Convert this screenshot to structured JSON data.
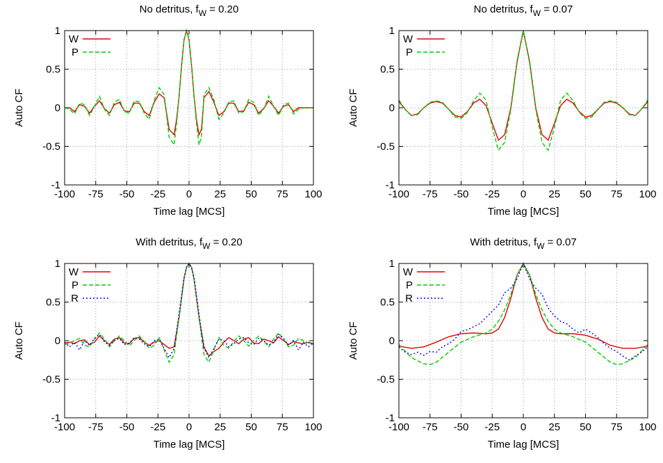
{
  "chart_data": [
    {
      "type": "line",
      "title": "No detritus,",
      "title_sub": "f",
      "title_subscript": "W",
      "title_value": " = 0.20",
      "xlabel": "Time lag [MCS]",
      "ylabel": "Auto CF",
      "xlim": [
        -100,
        100
      ],
      "ylim": [
        -1,
        1
      ],
      "xticks": [
        "-100",
        "-75",
        "-50",
        "-25",
        "0",
        "25",
        "50",
        "75",
        "100"
      ],
      "yticks": [
        "-1",
        "-0.5",
        "0",
        "0.5",
        "1"
      ],
      "grid": true,
      "legend_position": "top-left",
      "series": [
        {
          "name": "W",
          "color": "#e00000",
          "dash": "solid",
          "x": [
            -100,
            -96,
            -92,
            -88,
            -84,
            -80,
            -76,
            -72,
            -68,
            -64,
            -60,
            -56,
            -52,
            -48,
            -44,
            -40,
            -36,
            -32,
            -28,
            -24,
            -20,
            -16,
            -12,
            -10,
            -8,
            -6,
            -4,
            -2,
            0,
            2,
            4,
            6,
            8,
            10,
            12,
            16,
            20,
            24,
            28,
            32,
            36,
            40,
            44,
            48,
            52,
            56,
            60,
            64,
            68,
            72,
            76,
            80,
            84,
            88,
            92,
            96,
            100
          ],
          "values": [
            0.0,
            0.0,
            -0.05,
            0.04,
            0.02,
            -0.07,
            0.02,
            0.09,
            -0.01,
            -0.07,
            0.04,
            0.07,
            -0.04,
            -0.05,
            0.06,
            0.06,
            -0.05,
            -0.1,
            0.07,
            0.18,
            0.13,
            -0.28,
            -0.35,
            -0.15,
            0.15,
            0.55,
            0.88,
            1.0,
            0.88,
            0.55,
            0.15,
            -0.15,
            -0.35,
            -0.28,
            0.13,
            0.21,
            0.07,
            -0.1,
            -0.05,
            0.06,
            0.06,
            -0.05,
            -0.04,
            0.07,
            0.04,
            -0.07,
            -0.01,
            0.09,
            0.02,
            -0.07,
            0.02,
            0.04,
            -0.05,
            0.0,
            0.0,
            0.0,
            0.0
          ]
        },
        {
          "name": "P",
          "color": "#00cc00",
          "dash": "dashed",
          "x": [
            -100,
            -96,
            -92,
            -88,
            -84,
            -80,
            -76,
            -72,
            -68,
            -64,
            -60,
            -56,
            -52,
            -48,
            -44,
            -40,
            -36,
            -32,
            -28,
            -24,
            -20,
            -16,
            -12,
            -10,
            -8,
            -6,
            -4,
            -2,
            0,
            2,
            4,
            6,
            8,
            10,
            12,
            16,
            20,
            24,
            28,
            32,
            36,
            40,
            44,
            48,
            52,
            56,
            60,
            64,
            68,
            72,
            76,
            80,
            84,
            88,
            92,
            96,
            100
          ],
          "values": [
            0.0,
            -0.02,
            -0.08,
            0.06,
            0.04,
            -0.1,
            0.02,
            0.15,
            -0.02,
            -0.1,
            0.07,
            0.11,
            -0.05,
            -0.07,
            0.09,
            0.08,
            -0.07,
            -0.15,
            0.1,
            0.26,
            0.17,
            -0.38,
            -0.48,
            -0.2,
            0.15,
            0.55,
            0.88,
            1.0,
            0.88,
            0.55,
            0.15,
            -0.2,
            -0.48,
            -0.38,
            0.17,
            0.26,
            0.1,
            -0.15,
            -0.07,
            0.08,
            0.09,
            -0.07,
            -0.05,
            0.11,
            0.07,
            -0.1,
            -0.02,
            0.15,
            0.02,
            -0.1,
            0.04,
            0.06,
            -0.08,
            -0.02,
            0.0,
            0.0,
            0.0
          ]
        }
      ]
    },
    {
      "type": "line",
      "title": "No detritus,",
      "title_sub": "f",
      "title_subscript": "W",
      "title_value": " = 0.07",
      "xlabel": "Time lag [MCS]",
      "ylabel": "Auto CF",
      "xlim": [
        -100,
        100
      ],
      "ylim": [
        -1,
        1
      ],
      "xticks": [
        "-100",
        "-75",
        "-50",
        "-25",
        "0",
        "25",
        "50",
        "75",
        "100"
      ],
      "yticks": [
        "-1",
        "-0.5",
        "0",
        "0.5",
        "1"
      ],
      "grid": true,
      "legend_position": "top-left",
      "series": [
        {
          "name": "W",
          "color": "#e00000",
          "dash": "solid",
          "x": [
            -100,
            -95,
            -90,
            -85,
            -80,
            -75,
            -70,
            -65,
            -60,
            -55,
            -50,
            -45,
            -40,
            -35,
            -30,
            -25,
            -20,
            -15,
            -10,
            -5,
            0,
            5,
            10,
            15,
            20,
            25,
            30,
            35,
            40,
            45,
            50,
            55,
            60,
            65,
            70,
            75,
            80,
            85,
            90,
            95,
            100
          ],
          "values": [
            0.08,
            -0.02,
            -0.1,
            -0.08,
            0.0,
            0.06,
            0.08,
            0.06,
            -0.02,
            -0.1,
            -0.12,
            -0.05,
            0.06,
            0.11,
            0.03,
            -0.2,
            -0.42,
            -0.35,
            0.0,
            0.6,
            1.0,
            0.6,
            0.0,
            -0.35,
            -0.42,
            -0.2,
            0.03,
            0.11,
            0.06,
            -0.05,
            -0.12,
            -0.1,
            -0.02,
            0.06,
            0.08,
            0.06,
            0.0,
            -0.08,
            -0.1,
            -0.02,
            0.08
          ]
        },
        {
          "name": "P",
          "color": "#00cc00",
          "dash": "dashed",
          "x": [
            -100,
            -95,
            -90,
            -85,
            -80,
            -75,
            -70,
            -65,
            -60,
            -55,
            -50,
            -45,
            -40,
            -35,
            -30,
            -25,
            -20,
            -15,
            -10,
            -5,
            0,
            5,
            10,
            15,
            20,
            25,
            30,
            35,
            40,
            45,
            50,
            55,
            60,
            65,
            70,
            75,
            80,
            85,
            90,
            95,
            100
          ],
          "values": [
            0.1,
            -0.02,
            -0.1,
            -0.09,
            0.0,
            0.07,
            0.09,
            0.07,
            -0.02,
            -0.12,
            -0.14,
            -0.06,
            0.09,
            0.19,
            0.1,
            -0.25,
            -0.55,
            -0.45,
            -0.02,
            0.58,
            1.0,
            0.58,
            -0.02,
            -0.45,
            -0.55,
            -0.25,
            0.1,
            0.19,
            0.09,
            -0.06,
            -0.14,
            -0.12,
            -0.02,
            0.07,
            0.09,
            0.07,
            0.0,
            -0.09,
            -0.1,
            -0.02,
            0.1
          ]
        }
      ]
    },
    {
      "type": "line",
      "title": "With detritus,",
      "title_sub": "f",
      "title_subscript": "W",
      "title_value": " = 0.20",
      "xlabel": "Time lag [MCS]",
      "ylabel": "Auto CF",
      "xlim": [
        -100,
        100
      ],
      "ylim": [
        -1,
        1
      ],
      "xticks": [
        "-100",
        "-75",
        "-50",
        "-25",
        "0",
        "25",
        "50",
        "75",
        "100"
      ],
      "yticks": [
        "-1",
        "-0.5",
        "0",
        "0.5",
        "1"
      ],
      "grid": true,
      "legend_position": "top-left",
      "series": [
        {
          "name": "W",
          "color": "#e00000",
          "dash": "solid",
          "x": [
            -100,
            -96,
            -92,
            -88,
            -84,
            -80,
            -76,
            -72,
            -68,
            -64,
            -60,
            -56,
            -52,
            -48,
            -44,
            -40,
            -36,
            -32,
            -28,
            -24,
            -20,
            -16,
            -12,
            -8,
            -4,
            -2,
            0,
            2,
            4,
            8,
            12,
            16,
            20,
            24,
            28,
            32,
            36,
            40,
            44,
            48,
            52,
            56,
            60,
            64,
            68,
            72,
            76,
            80,
            84,
            88,
            92,
            96,
            100
          ],
          "values": [
            -0.03,
            -0.02,
            -0.04,
            0.0,
            0.01,
            -0.05,
            -0.02,
            0.06,
            0.0,
            -0.05,
            0.02,
            0.04,
            -0.03,
            -0.04,
            0.03,
            0.04,
            -0.02,
            -0.06,
            -0.02,
            0.0,
            -0.05,
            -0.1,
            -0.08,
            0.3,
            0.8,
            0.95,
            1.0,
            0.95,
            0.8,
            0.3,
            -0.08,
            -0.2,
            -0.14,
            -0.1,
            -0.02,
            0.04,
            0.0,
            -0.04,
            0.02,
            0.04,
            -0.03,
            -0.04,
            0.02,
            0.0,
            -0.03,
            0.05,
            0.0,
            -0.05,
            -0.01,
            -0.03,
            -0.04,
            -0.02,
            -0.04
          ]
        },
        {
          "name": "P",
          "color": "#00cc00",
          "dash": "dashed",
          "x": [
            -100,
            -96,
            -92,
            -88,
            -84,
            -80,
            -76,
            -72,
            -68,
            -64,
            -60,
            -56,
            -52,
            -48,
            -44,
            -40,
            -36,
            -32,
            -28,
            -24,
            -20,
            -16,
            -12,
            -8,
            -4,
            -2,
            0,
            2,
            4,
            8,
            12,
            16,
            20,
            24,
            28,
            32,
            36,
            40,
            44,
            48,
            52,
            56,
            60,
            64,
            68,
            72,
            76,
            80,
            84,
            88,
            92,
            96,
            100
          ],
          "values": [
            -0.05,
            -0.03,
            0.0,
            0.03,
            -0.06,
            -0.08,
            0.02,
            0.1,
            0.02,
            -0.08,
            0.0,
            0.06,
            0.0,
            -0.07,
            0.0,
            0.06,
            -0.01,
            -0.1,
            -0.06,
            0.04,
            -0.12,
            -0.28,
            -0.18,
            0.3,
            0.8,
            0.95,
            1.0,
            0.95,
            0.8,
            0.3,
            -0.18,
            -0.28,
            -0.12,
            0.04,
            -0.06,
            -0.1,
            -0.01,
            0.06,
            0.0,
            -0.07,
            0.0,
            0.06,
            0.0,
            -0.08,
            0.02,
            0.1,
            0.02,
            -0.08,
            -0.06,
            0.03,
            0.0,
            -0.03,
            -0.05
          ]
        },
        {
          "name": "R",
          "color": "#0000dd",
          "dash": "dotted",
          "x": [
            -100,
            -96,
            -92,
            -88,
            -84,
            -80,
            -76,
            -72,
            -68,
            -64,
            -60,
            -56,
            -52,
            -48,
            -44,
            -40,
            -36,
            -32,
            -28,
            -24,
            -20,
            -16,
            -12,
            -8,
            -4,
            -2,
            0,
            2,
            4,
            8,
            12,
            16,
            20,
            24,
            28,
            32,
            36,
            40,
            44,
            48,
            52,
            56,
            60,
            64,
            68,
            72,
            76,
            80,
            84,
            88,
            92,
            96,
            100
          ],
          "values": [
            -0.02,
            -0.08,
            -0.02,
            -0.12,
            0.0,
            -0.06,
            0.03,
            0.08,
            -0.02,
            -0.06,
            0.0,
            0.03,
            -0.05,
            -0.03,
            0.04,
            0.02,
            -0.04,
            -0.08,
            0.0,
            0.02,
            -0.1,
            -0.22,
            -0.1,
            0.35,
            0.82,
            0.95,
            1.0,
            0.95,
            0.82,
            0.35,
            -0.1,
            -0.22,
            -0.1,
            0.02,
            0.0,
            -0.08,
            -0.04,
            0.02,
            0.04,
            -0.03,
            -0.05,
            0.03,
            0.0,
            -0.06,
            -0.02,
            0.08,
            0.03,
            -0.06,
            0.0,
            -0.12,
            -0.02,
            -0.08,
            -0.02
          ]
        }
      ]
    },
    {
      "type": "line",
      "title": "With detritus,",
      "title_sub": "f",
      "title_subscript": "W",
      "title_value": " = 0.07",
      "xlabel": "Time lag [MCS]",
      "ylabel": "Auto CF",
      "xlim": [
        -100,
        100
      ],
      "ylim": [
        -1,
        1
      ],
      "xticks": [
        "-100",
        "-75",
        "-50",
        "-25",
        "0",
        "25",
        "50",
        "75",
        "100"
      ],
      "yticks": [
        "-1",
        "-0.5",
        "0",
        "0.5",
        "1"
      ],
      "grid": true,
      "legend_position": "top-left",
      "series": [
        {
          "name": "W",
          "color": "#e00000",
          "dash": "solid",
          "x": [
            -100,
            -90,
            -80,
            -70,
            -60,
            -50,
            -40,
            -30,
            -25,
            -20,
            -15,
            -10,
            -5,
            0,
            5,
            10,
            15,
            20,
            25,
            30,
            40,
            50,
            60,
            70,
            80,
            90,
            100
          ],
          "values": [
            -0.07,
            -0.1,
            -0.08,
            -0.02,
            0.05,
            0.09,
            0.1,
            0.09,
            0.1,
            0.15,
            0.3,
            0.55,
            0.85,
            1.0,
            0.85,
            0.55,
            0.3,
            0.15,
            0.1,
            0.09,
            0.09,
            0.07,
            0.02,
            -0.06,
            -0.1,
            -0.1,
            -0.07
          ]
        },
        {
          "name": "P",
          "color": "#00cc00",
          "dash": "dashed",
          "x": [
            -100,
            -90,
            -80,
            -75,
            -70,
            -60,
            -50,
            -40,
            -30,
            -25,
            -20,
            -15,
            -10,
            -5,
            0,
            5,
            10,
            15,
            20,
            25,
            30,
            40,
            50,
            60,
            70,
            75,
            80,
            90,
            100
          ],
          "values": [
            -0.05,
            -0.22,
            -0.3,
            -0.31,
            -0.28,
            -0.15,
            -0.02,
            0.05,
            0.1,
            0.15,
            0.25,
            0.4,
            0.6,
            0.85,
            1.0,
            0.85,
            0.6,
            0.4,
            0.25,
            0.15,
            0.1,
            0.05,
            -0.02,
            -0.15,
            -0.28,
            -0.31,
            -0.3,
            -0.22,
            -0.05
          ]
        },
        {
          "name": "R",
          "color": "#0000dd",
          "dash": "dotted",
          "x": [
            -100,
            -95,
            -90,
            -85,
            -80,
            -75,
            -70,
            -65,
            -60,
            -55,
            -50,
            -45,
            -40,
            -35,
            -30,
            -25,
            -20,
            -15,
            -10,
            -5,
            0,
            5,
            10,
            15,
            20,
            25,
            30,
            35,
            40,
            45,
            50,
            55,
            60,
            65,
            70,
            75,
            80,
            85,
            90,
            95,
            100
          ],
          "values": [
            -0.08,
            -0.15,
            -0.18,
            -0.15,
            -0.19,
            -0.14,
            -0.15,
            -0.08,
            -0.04,
            0.02,
            0.12,
            0.14,
            0.18,
            0.22,
            0.3,
            0.38,
            0.46,
            0.62,
            0.68,
            0.8,
            1.0,
            0.8,
            0.68,
            0.6,
            0.42,
            0.32,
            0.25,
            0.22,
            0.15,
            0.1,
            0.15,
            0.1,
            0.04,
            -0.04,
            -0.1,
            -0.14,
            -0.2,
            -0.25,
            -0.2,
            -0.15,
            -0.08
          ]
        }
      ]
    }
  ]
}
